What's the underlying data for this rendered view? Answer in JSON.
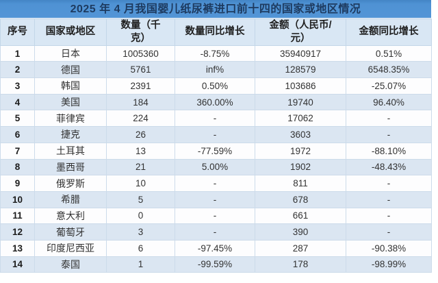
{
  "title": "2025 年 4 月我国婴儿纸尿裤进口前十四的国家或地区情况",
  "colors": {
    "title_bg": "#5295d6",
    "title_text": "#1d3a5f",
    "header_bg": "#d9e7f4",
    "stripe_row_bg": "#dbe6f2",
    "plain_row_bg": "#fdfdfe",
    "grid_border": "#ccdbea"
  },
  "chart_data": {
    "type": "table",
    "title": "2025 年 4 月我国婴儿纸尿裤进口前十四的国家或地区情况",
    "column_keys": [
      "rank",
      "country",
      "quantity-kg",
      "quantity-yoy",
      "amount-rmb",
      "amount-yoy"
    ],
    "columns": [
      "序号",
      "国家或地区",
      "数量（千克）",
      "数量同比增长",
      "金额（人民币/元）",
      "金额同比增长"
    ],
    "header_lines": [
      [
        "序号"
      ],
      [
        "国家或地区"
      ],
      [
        "数量（千",
        "克）"
      ],
      [
        "数量同比增长"
      ],
      [
        "金额（人民币/",
        "元）"
      ],
      [
        "金额同比增长"
      ]
    ],
    "rows": [
      [
        "1",
        "日本",
        "1005360",
        "-8.75%",
        "35940917",
        "0.51%"
      ],
      [
        "2",
        "德国",
        "5761",
        "inf%",
        "128579",
        "6548.35%"
      ],
      [
        "3",
        "韩国",
        "2391",
        "0.50%",
        "103686",
        "-25.07%"
      ],
      [
        "4",
        "美国",
        "184",
        "360.00%",
        "19740",
        "96.40%"
      ],
      [
        "5",
        "菲律宾",
        "224",
        "-",
        "17062",
        "-"
      ],
      [
        "6",
        "捷克",
        "26",
        "-",
        "3603",
        "-"
      ],
      [
        "7",
        "土耳其",
        "13",
        "-77.59%",
        "1972",
        "-88.10%"
      ],
      [
        "8",
        "墨西哥",
        "21",
        "5.00%",
        "1902",
        "-48.43%"
      ],
      [
        "9",
        "俄罗斯",
        "10",
        "-",
        "811",
        "-"
      ],
      [
        "10",
        "希腊",
        "5",
        "-",
        "678",
        "-"
      ],
      [
        "11",
        "意大利",
        "0",
        "-",
        "661",
        "-"
      ],
      [
        "12",
        "葡萄牙",
        "3",
        "-",
        "390",
        "-"
      ],
      [
        "13",
        "印度尼西亚",
        "6",
        "-97.45%",
        "287",
        "-90.38%"
      ],
      [
        "14",
        "泰国",
        "1",
        "-99.59%",
        "178",
        "-98.99%"
      ]
    ]
  }
}
